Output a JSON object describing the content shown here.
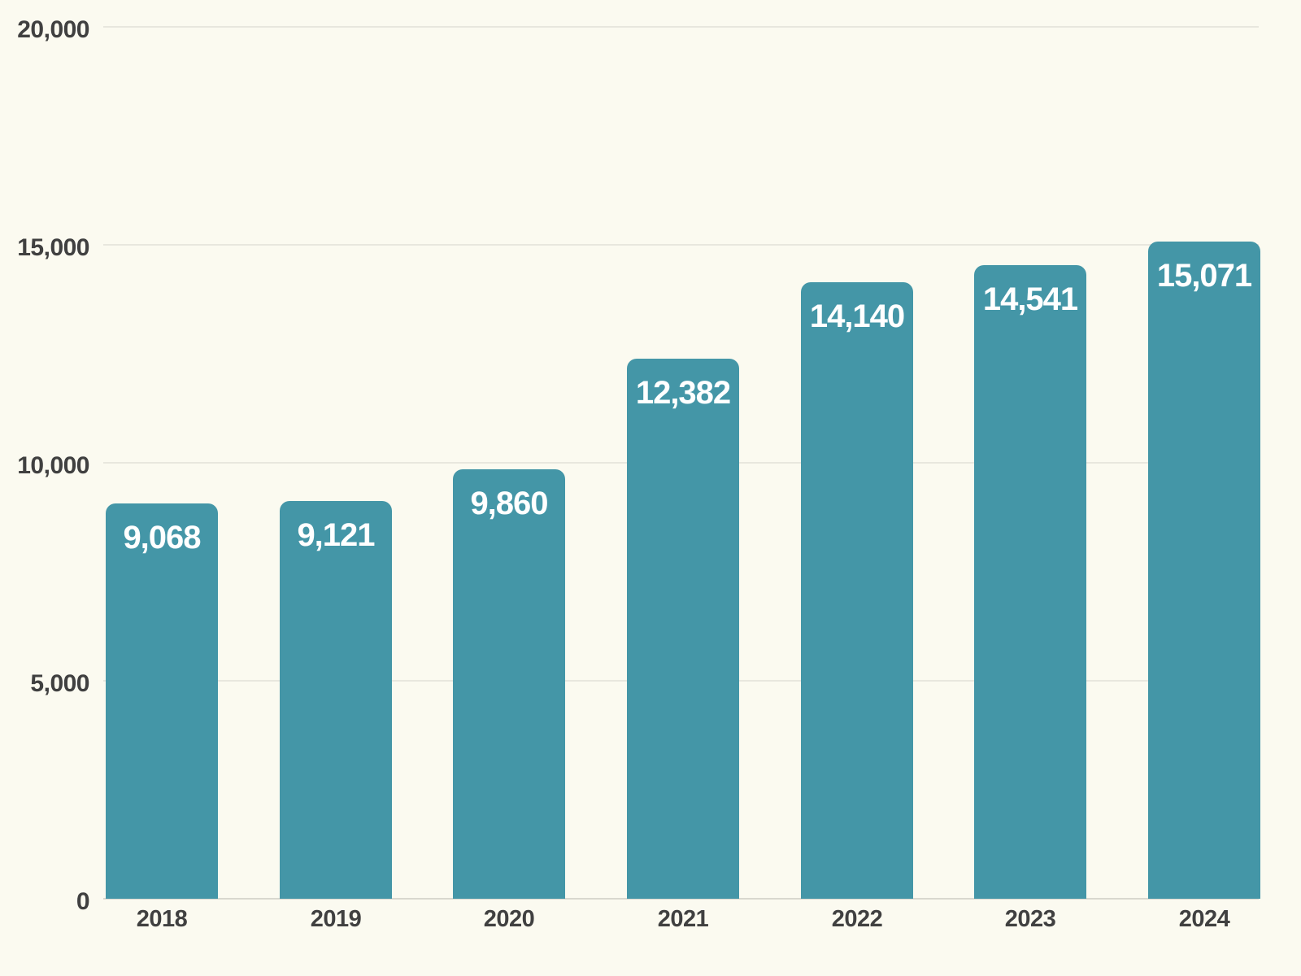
{
  "chart_data": {
    "type": "bar",
    "title": "",
    "xlabel": "",
    "ylabel": "",
    "categories": [
      "2018",
      "2019",
      "2020",
      "2021",
      "2022",
      "2023",
      "2024"
    ],
    "values": [
      9068,
      9121,
      9860,
      12382,
      14140,
      14541,
      15071
    ],
    "value_labels": [
      "9,068",
      "9,121",
      "9,860",
      "12,382",
      "14,140",
      "14,541",
      "15,071"
    ],
    "ylim": [
      0,
      20000
    ],
    "yticks": [
      0,
      5000,
      10000,
      15000,
      20000
    ],
    "ytick_labels": [
      "0",
      "5,000",
      "10,000",
      "15,000",
      "20,000"
    ],
    "grid": true,
    "legend": false,
    "colors": {
      "bar": "#4496A7",
      "value_label": "#FFFFFF",
      "axis_text": "#404040",
      "gridline": "#E8E7DE",
      "baseline": "#D9D8CF",
      "background": "#FBFAF0"
    }
  }
}
